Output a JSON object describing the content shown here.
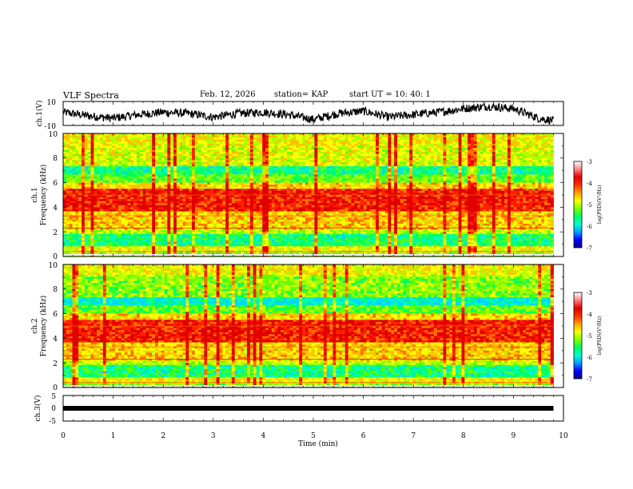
{
  "header": {
    "title": "VLF Spectra",
    "date": "Feb. 12, 2026",
    "station": "station= KAP",
    "start_ut": "start  UT  =  10: 40: 1"
  },
  "colors": {
    "scale": [
      "#00008b",
      "#0000ff",
      "#00a0ff",
      "#00ffd0",
      "#00ff60",
      "#80ff00",
      "#ffff00",
      "#ffa000",
      "#ff3000",
      "#e00000",
      "#ff8080",
      "#ffffff"
    ]
  },
  "chart_data": [
    {
      "type": "line",
      "panel": "ch1-waveform",
      "ylabel": "ch.1(V)",
      "ylim": [
        -10,
        10
      ],
      "yticks": [
        "10",
        "-10"
      ],
      "xlim": [
        0,
        10
      ],
      "series": [
        {
          "x": [
            0,
            0.5,
            1,
            1.5,
            2,
            2.5,
            3,
            3.5,
            4,
            4.5,
            5,
            5.5,
            6,
            6.5,
            7,
            7.5,
            8,
            8.5,
            9,
            9.5,
            9.8
          ],
          "y": [
            1,
            -2,
            -4,
            -1,
            1,
            0,
            -3,
            0,
            1,
            -1,
            -5,
            0,
            2,
            -3,
            -1,
            1,
            4,
            6,
            4,
            -4,
            -6
          ]
        }
      ]
    },
    {
      "type": "heatmap",
      "panel": "ch1-spectrogram",
      "ylabel": "ch.1",
      "ylabel2": "Frequency (kHz)",
      "ylim": [
        0,
        10
      ],
      "yticks": [
        "0",
        "2",
        "4",
        "6",
        "8",
        "10"
      ],
      "xlim": [
        0,
        10
      ],
      "colorbar": {
        "label": "log(PSD)(V²/Hz)",
        "range": [
          -7,
          -3
        ],
        "ticks": [
          "-3",
          "-4",
          "-5",
          "-6",
          "-7"
        ]
      }
    },
    {
      "type": "heatmap",
      "panel": "ch2-spectrogram",
      "ylabel": "ch.2",
      "ylabel2": "Frequency (kHz)",
      "ylim": [
        0,
        10
      ],
      "yticks": [
        "0",
        "2",
        "4",
        "6",
        "8",
        "10"
      ],
      "xlim": [
        0,
        10
      ],
      "colorbar": {
        "label": "log(PSD)(V²/Hz)",
        "range": [
          -7,
          -3
        ],
        "ticks": [
          "-3",
          "-4",
          "-5",
          "-6",
          "-7"
        ]
      }
    },
    {
      "type": "line",
      "panel": "ch3-waveform",
      "ylabel": "ch.3(V)",
      "ylim": [
        -5,
        5
      ],
      "yticks": [
        "5",
        "0",
        "-5"
      ],
      "xlim": [
        0,
        10
      ],
      "xlabel": "Time (min)",
      "xticks": [
        "0",
        "1",
        "2",
        "3",
        "4",
        "5",
        "6",
        "7",
        "8",
        "9",
        "10"
      ],
      "series": [
        {
          "x": [
            0,
            9.8
          ],
          "y": [
            0,
            0
          ]
        }
      ]
    }
  ]
}
